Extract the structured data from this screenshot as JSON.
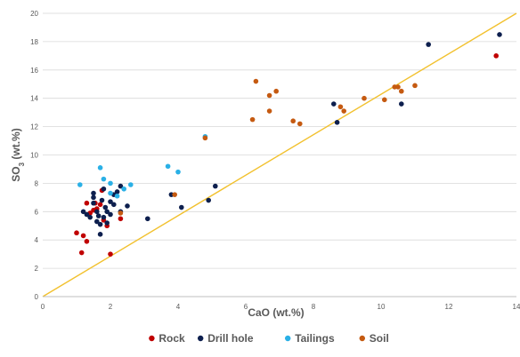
{
  "chart_data": {
    "type": "scatter",
    "xlabel": "CaO (wt.%)",
    "ylabel": "SO3 (wt.%)",
    "xlim": [
      0,
      14
    ],
    "ylim": [
      0,
      20
    ],
    "x_ticks": [
      0,
      2,
      4,
      6,
      8,
      10,
      12,
      14
    ],
    "y_ticks": [
      0,
      2,
      4,
      6,
      8,
      10,
      12,
      14,
      16,
      18,
      20
    ],
    "grid": "horizontal",
    "legend_position": "bottom",
    "reference_line": {
      "x": [
        0,
        14
      ],
      "y": [
        0,
        20
      ],
      "color": "#F2C12E"
    },
    "series": [
      {
        "name": "Rock",
        "color": "#C00000",
        "points": [
          [
            1.0,
            4.5
          ],
          [
            1.15,
            3.1
          ],
          [
            1.2,
            4.3
          ],
          [
            1.3,
            3.9
          ],
          [
            2.0,
            3.0
          ],
          [
            1.3,
            6.6
          ],
          [
            1.4,
            5.9
          ],
          [
            1.5,
            6.1
          ],
          [
            1.6,
            6.2
          ],
          [
            1.7,
            6.5
          ],
          [
            1.8,
            5.4
          ],
          [
            1.9,
            5.0
          ],
          [
            1.75,
            7.5
          ],
          [
            2.3,
            5.5
          ],
          [
            1.55,
            6.6
          ],
          [
            13.4,
            17.0
          ]
        ]
      },
      {
        "name": "Drill hole",
        "color": "#0D1F4E",
        "points": [
          [
            1.2,
            6.0
          ],
          [
            1.3,
            5.8
          ],
          [
            1.4,
            5.6
          ],
          [
            1.5,
            7.3
          ],
          [
            1.5,
            7.0
          ],
          [
            1.5,
            6.6
          ],
          [
            1.6,
            6.0
          ],
          [
            1.6,
            5.3
          ],
          [
            1.7,
            5.1
          ],
          [
            1.7,
            4.4
          ],
          [
            1.75,
            6.8
          ],
          [
            1.8,
            7.6
          ],
          [
            1.8,
            5.6
          ],
          [
            1.9,
            6.0
          ],
          [
            1.9,
            5.2
          ],
          [
            2.0,
            6.7
          ],
          [
            2.0,
            5.8
          ],
          [
            2.1,
            6.5
          ],
          [
            2.1,
            7.2
          ],
          [
            2.2,
            7.4
          ],
          [
            2.3,
            7.8
          ],
          [
            2.3,
            6.0
          ],
          [
            2.5,
            6.4
          ],
          [
            1.85,
            6.3
          ],
          [
            1.65,
            5.7
          ],
          [
            3.1,
            5.5
          ],
          [
            3.8,
            7.2
          ],
          [
            4.1,
            6.3
          ],
          [
            4.9,
            6.8
          ],
          [
            5.1,
            7.8
          ],
          [
            8.6,
            13.6
          ],
          [
            8.7,
            12.3
          ],
          [
            10.6,
            13.6
          ],
          [
            11.4,
            17.8
          ],
          [
            13.5,
            18.5
          ]
        ]
      },
      {
        "name": "Tailings",
        "color": "#2AB0E6",
        "points": [
          [
            1.1,
            7.9
          ],
          [
            1.7,
            9.1
          ],
          [
            1.8,
            8.3
          ],
          [
            2.0,
            8.0
          ],
          [
            2.2,
            7.1
          ],
          [
            2.4,
            7.6
          ],
          [
            2.6,
            7.9
          ],
          [
            2.0,
            7.3
          ],
          [
            3.7,
            9.2
          ],
          [
            4.0,
            8.8
          ],
          [
            4.8,
            11.3
          ]
        ]
      },
      {
        "name": "Soil",
        "color": "#C55A11",
        "points": [
          [
            2.3,
            5.9
          ],
          [
            3.9,
            7.2
          ],
          [
            4.8,
            11.2
          ],
          [
            6.2,
            12.5
          ],
          [
            6.3,
            15.2
          ],
          [
            6.7,
            14.2
          ],
          [
            6.7,
            13.1
          ],
          [
            6.9,
            14.5
          ],
          [
            7.4,
            12.4
          ],
          [
            7.6,
            12.2
          ],
          [
            8.8,
            13.4
          ],
          [
            8.9,
            13.1
          ],
          [
            9.5,
            14.0
          ],
          [
            10.1,
            13.9
          ],
          [
            10.4,
            14.8
          ],
          [
            10.5,
            14.8
          ],
          [
            10.6,
            14.5
          ],
          [
            11.0,
            14.9
          ]
        ]
      }
    ]
  }
}
